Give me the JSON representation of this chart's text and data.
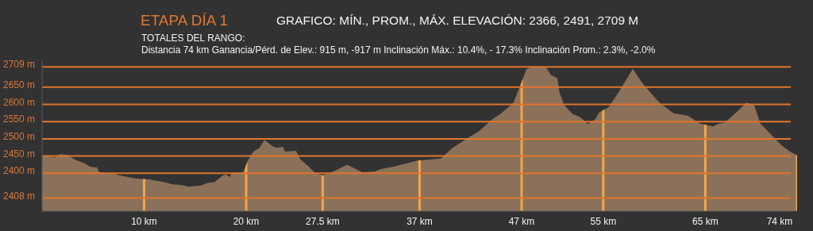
{
  "chart_data": {
    "type": "area",
    "title": "ETAPA DÍA 1",
    "subtitle": "GRAFICO: MÍN., PROM., MÁX. ELEVACIÓN: 2366, 2491, 2709 M",
    "annotations": [
      "TOTALES DEL RANGO:",
      "Distancia 74 km   Ganancia/Pérd. de Elev.: 915 m, -917 m  Inclinación Máx.: 10.4%, - 17.3%  Inclinación Prom.: 2.3%, -2.0%"
    ],
    "x": [
      0,
      1.3,
      1.8,
      2.6,
      3.1,
      4.1,
      4.7,
      5.4,
      5.6,
      7.0,
      7.6,
      9.1,
      10.5,
      12.0,
      12.8,
      13.6,
      14.4,
      15.6,
      16.2,
      16.9,
      17.7,
      18.0,
      18.4,
      18.6,
      19.7,
      20.2,
      20.7,
      21.3,
      21.8,
      22.5,
      22.9,
      23.6,
      23.8,
      24.9,
      25.3,
      26.0,
      26.7,
      27.5,
      28.4,
      29.9,
      31.4,
      32.6,
      33.2,
      34.7,
      35.9,
      36.8,
      39.1,
      40.2,
      41.8,
      42.9,
      44.0,
      45.0,
      46.2,
      46.8,
      47.5,
      48.4,
      49.4,
      49.9,
      50.5,
      50.7,
      51.2,
      52.0,
      52.7,
      53.5,
      54.2,
      54.6,
      55.5,
      56.5,
      57.9,
      58.8,
      59.6,
      60.5,
      61.9,
      63.3,
      64.5,
      65.8,
      66.2,
      66.9,
      67.6,
      68.3,
      69.0,
      69.8,
      70.4,
      71.4,
      72.5,
      73.3,
      74.0
    ],
    "values": [
      2450,
      2446,
      2456,
      2452,
      2441,
      2430,
      2419,
      2417,
      2403,
      2399,
      2394,
      2385,
      2382,
      2374,
      2368,
      2366,
      2361,
      2365,
      2372,
      2374,
      2394,
      2397,
      2389,
      2401,
      2403,
      2439,
      2463,
      2473,
      2497,
      2481,
      2474,
      2477,
      2463,
      2465,
      2441,
      2423,
      2403,
      2394,
      2403,
      2425,
      2403,
      2405,
      2412,
      2421,
      2430,
      2437,
      2443,
      2473,
      2504,
      2524,
      2554,
      2574,
      2605,
      2650,
      2703,
      2712,
      2707,
      2685,
      2676,
      2635,
      2597,
      2572,
      2564,
      2543,
      2556,
      2577,
      2591,
      2635,
      2703,
      2663,
      2635,
      2605,
      2574,
      2567,
      2544,
      2536,
      2543,
      2547,
      2565,
      2584,
      2605,
      2597,
      2544,
      2514,
      2481,
      2463,
      2452
    ],
    "color": "#8b7159",
    "xlim": [
      0,
      74
    ],
    "ylim": [
      2290,
      2728
    ],
    "xticks": [
      {
        "value": 10,
        "label": "10 km"
      },
      {
        "value": 20,
        "label": "20 km"
      },
      {
        "value": 27.5,
        "label": "27.5 km"
      },
      {
        "value": 37,
        "label": "37 km"
      },
      {
        "value": 47,
        "label": "47 km"
      },
      {
        "value": 55,
        "label": "55 km"
      },
      {
        "value": 65,
        "label": "65 km"
      },
      {
        "value": 74,
        "label": "74 km"
      }
    ],
    "yticks": [
      {
        "value": 2709,
        "label": "2709 m"
      },
      {
        "value": 2650,
        "label": "2650 m"
      },
      {
        "value": 2600,
        "label": "2600 m"
      },
      {
        "value": 2550,
        "label": "2550 m"
      },
      {
        "value": 2500,
        "label": "2500 m"
      },
      {
        "value": 2450,
        "label": "2450 m"
      },
      {
        "value": 2400,
        "label": "2400 m"
      }
    ],
    "ref_lines": [
      {
        "axis": "y",
        "value": 2328,
        "label": "2408 m",
        "color": "#e0752d"
      }
    ],
    "grid": true
  }
}
